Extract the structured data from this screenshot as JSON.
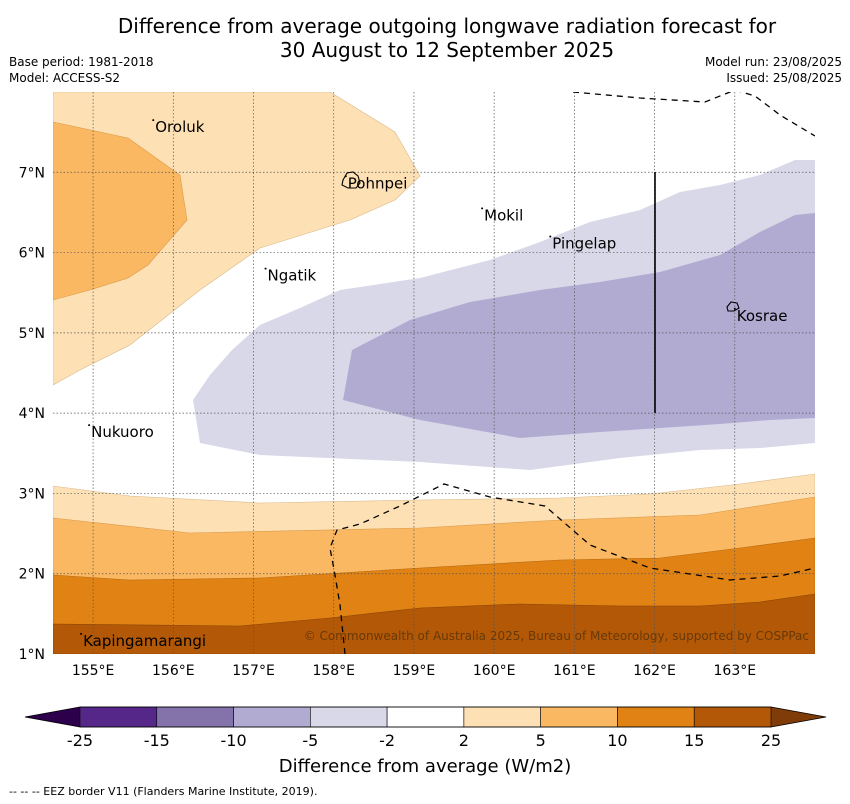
{
  "title_line1": "Difference from average outgoing longwave radiation forecast for",
  "title_line2": "30 August to 12 September 2025",
  "base_period": "Base period: 1981-2018",
  "model": "Model: ACCESS-S2",
  "model_run": "Model run: 23/08/2025",
  "issued": "Issued: 25/08/2025",
  "copyright": "© Commonwealth of Australia 2025, Bureau of Meteorology, supported by COSPPac",
  "footer": "-- -- -- EEZ border V11 (Flanders Marine Institute, 2019).",
  "map": {
    "lon_range": [
      154.5,
      164.0
    ],
    "lat_range": [
      1.0,
      8.0
    ],
    "lon_ticks": [
      "155°E",
      "156°E",
      "157°E",
      "158°E",
      "159°E",
      "160°E",
      "161°E",
      "162°E",
      "163°E"
    ],
    "lat_ticks": [
      "1°N",
      "2°N",
      "3°N",
      "4°N",
      "5°N",
      "6°N",
      "7°N"
    ],
    "places": [
      {
        "name": "Oroluk",
        "lon": 155.75,
        "lat": 7.65
      },
      {
        "name": "Pohnpei",
        "lon": 158.15,
        "lat": 6.95
      },
      {
        "name": "Mokil",
        "lon": 159.85,
        "lat": 6.55
      },
      {
        "name": "Pingelap",
        "lon": 160.7,
        "lat": 6.2
      },
      {
        "name": "Ngatik",
        "lon": 157.15,
        "lat": 5.8
      },
      {
        "name": "Kosrae",
        "lon": 163.0,
        "lat": 5.3
      },
      {
        "name": "Nukuoro",
        "lon": 154.95,
        "lat": 3.85
      },
      {
        "name": "Kapingamarangi",
        "lon": 154.85,
        "lat": 1.25
      }
    ]
  },
  "colorbar": {
    "labels": [
      "-25",
      "-15",
      "-10",
      "-5",
      "-2",
      "2",
      "5",
      "10",
      "15",
      "25"
    ],
    "colors": [
      "#552788",
      "#8473ab",
      "#b1abd2",
      "#d8d8e9",
      "#ffffff",
      "#fde0b4",
      "#fbb862",
      "#e08214",
      "#b35807"
    ],
    "low_color": "#2d004b",
    "high_color": "#7f3b08",
    "axis_label": "Difference from average (W/m2)"
  }
}
